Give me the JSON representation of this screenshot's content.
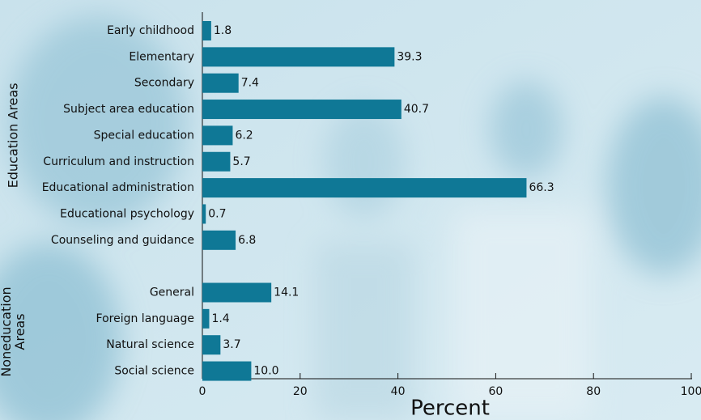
{
  "chart_data": {
    "type": "bar",
    "orientation": "horizontal",
    "x_label": "Percent",
    "groups": [
      {
        "label": [
          "Education Areas"
        ],
        "first": 0,
        "last": 8
      },
      {
        "label": [
          "Noneducation",
          "Areas"
        ],
        "first": 10,
        "last": 13
      }
    ],
    "categories": [
      "Early childhood",
      "Elementary",
      "Secondary",
      "Subject area education",
      "Special education",
      "Curriculum and instruction",
      "Educational administration",
      "Educational psychology",
      "Counseling and guidance",
      null,
      "General",
      "Foreign language",
      "Natural science",
      "Social science"
    ],
    "values": [
      1.8,
      39.3,
      7.4,
      40.7,
      6.2,
      5.7,
      66.3,
      0.7,
      6.8,
      null,
      14.1,
      1.4,
      3.7,
      10
    ],
    "value_labels": [
      "1.8",
      "39.3",
      "7.4",
      "40.7",
      "6.2",
      "5.7",
      "66.3",
      "0.7",
      "6.8",
      null,
      "14.1",
      "1.4",
      "3.7",
      "10.0"
    ],
    "color": "#0f7896",
    "xlim": [
      0,
      100
    ],
    "xticks": [
      0,
      20,
      40,
      60,
      80,
      100
    ]
  }
}
